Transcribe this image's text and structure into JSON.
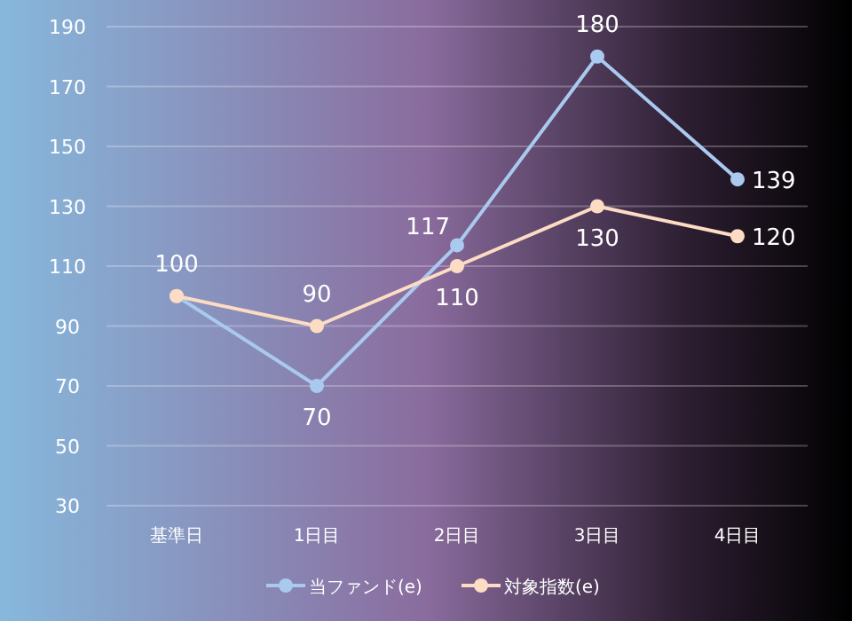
{
  "chart_data": {
    "type": "line",
    "categories": [
      "基準日",
      "1日目",
      "2日目",
      "3日目",
      "4日目"
    ],
    "series": [
      {
        "name": "当ファンド(e)",
        "color": "#a9c9ef",
        "values": [
          100,
          70,
          117,
          180,
          139
        ],
        "value_labels": [
          "100",
          "70",
          "117",
          "180",
          "139"
        ]
      },
      {
        "name": "対象指数(e)",
        "color": "#fddcc4",
        "values": [
          100,
          90,
          110,
          130,
          120
        ],
        "value_labels": [
          null,
          "90",
          "110",
          "130",
          "120"
        ]
      }
    ],
    "ylim": [
      30,
      190
    ],
    "yticks": [
      30,
      50,
      70,
      90,
      110,
      130,
      150,
      170,
      190
    ],
    "grid": "y",
    "legend": "bottom",
    "marker": "circle",
    "line_style": "solid"
  }
}
